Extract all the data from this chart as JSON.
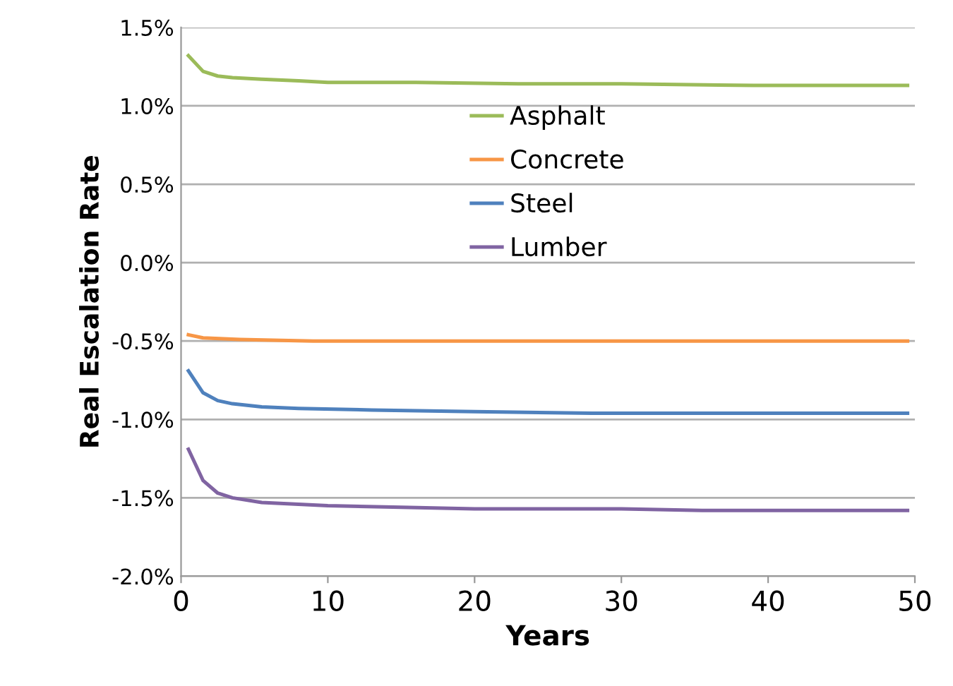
{
  "chart_data": {
    "type": "line",
    "xlabel": "Years",
    "ylabel": "Real Escalation Rate",
    "xlim": [
      0,
      50
    ],
    "xticks": [
      0,
      10,
      20,
      30,
      40,
      50
    ],
    "ylim": [
      -2.0,
      1.5
    ],
    "yticks": [
      {
        "value": -2.0,
        "label": "-2.0%"
      },
      {
        "value": -1.5,
        "label": "-1.5%"
      },
      {
        "value": -1.0,
        "label": "-1.0%"
      },
      {
        "value": -0.5,
        "label": "-0.5%"
      },
      {
        "value": 0.0,
        "label": "0.0%"
      },
      {
        "value": 0.5,
        "label": "0.5%"
      },
      {
        "value": 1.0,
        "label": "1.0%"
      },
      {
        "value": 1.5,
        "label": "1.5%"
      }
    ],
    "grid": "y",
    "legend": "top",
    "marker": "none",
    "line_style": "solid",
    "series": [
      {
        "name": "Asphalt",
        "color": "#9bbb59",
        "x": [
          0.5,
          1.5,
          2.5,
          3.5,
          5.5,
          8,
          10,
          16,
          23,
          30,
          39,
          49.5
        ],
        "values": [
          1.32,
          1.22,
          1.19,
          1.18,
          1.17,
          1.16,
          1.15,
          1.15,
          1.14,
          1.14,
          1.13,
          1.13
        ]
      },
      {
        "name": "Concrete",
        "color": "#f79646",
        "x": [
          0.5,
          1.5,
          4,
          9,
          20,
          49.5
        ],
        "values": [
          -0.46,
          -0.48,
          -0.49,
          -0.5,
          -0.5,
          -0.5
        ]
      },
      {
        "name": "Steel",
        "color": "#4f81bd",
        "x": [
          0.5,
          1.5,
          2.5,
          3.5,
          5.5,
          8,
          13,
          20,
          28,
          49.5
        ],
        "values": [
          -0.69,
          -0.83,
          -0.88,
          -0.9,
          -0.92,
          -0.93,
          -0.94,
          -0.95,
          -0.96,
          -0.96
        ]
      },
      {
        "name": "Lumber",
        "color": "#8064a2",
        "x": [
          0.5,
          1.5,
          2.5,
          3.5,
          5.5,
          10,
          15,
          20,
          30,
          35.5,
          49.5
        ],
        "values": [
          -1.19,
          -1.39,
          -1.47,
          -1.5,
          -1.53,
          -1.55,
          -1.56,
          -1.57,
          -1.57,
          -1.58,
          -1.58
        ]
      }
    ]
  }
}
